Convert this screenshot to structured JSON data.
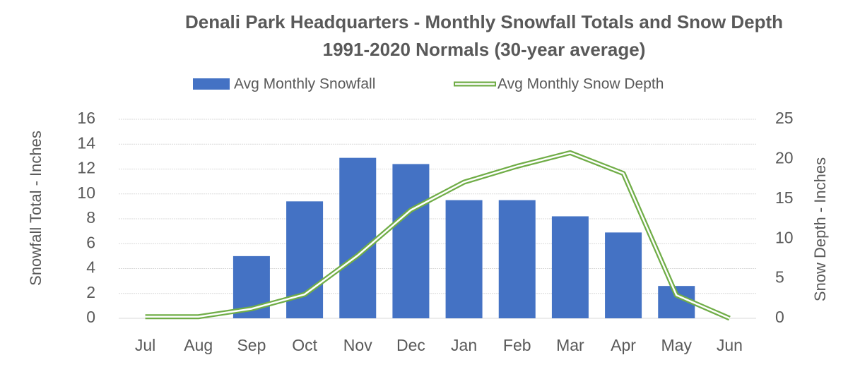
{
  "chart_data": {
    "type": "bar_line",
    "title": "Denali Park Headquarters - Monthly Snowfall Totals and Snow Depth",
    "subtitle": "1991-2020 Normals (30-year average)",
    "categories": [
      "Jul",
      "Aug",
      "Sep",
      "Oct",
      "Nov",
      "Dec",
      "Jan",
      "Feb",
      "Mar",
      "Apr",
      "May",
      "Jun"
    ],
    "series": [
      {
        "name": "Avg Monthly Snowfall",
        "type": "bar",
        "color": "#4472c4",
        "values": [
          0,
          0,
          5.0,
          9.4,
          12.9,
          12.4,
          9.5,
          9.5,
          8.2,
          6.9,
          2.6,
          0
        ]
      },
      {
        "name": "Avg Monthly Snow Depth",
        "type": "line",
        "axis": "y2",
        "color": "#70ad47",
        "values": [
          0.2,
          0.2,
          1.2,
          3.0,
          7.9,
          13.6,
          17.1,
          19.1,
          20.8,
          18.2,
          2.9,
          0
        ]
      }
    ],
    "ylabel": "Snowfall Total - Inches",
    "y2label": "Snow Depth - Inches",
    "ylim": [
      0,
      16
    ],
    "yticks": [
      0,
      2,
      4,
      6,
      8,
      10,
      12,
      14,
      16
    ],
    "y2lim": [
      0,
      25
    ],
    "y2ticks": [
      0,
      5,
      10,
      15,
      20,
      25
    ],
    "grid": true,
    "legend": "top"
  }
}
